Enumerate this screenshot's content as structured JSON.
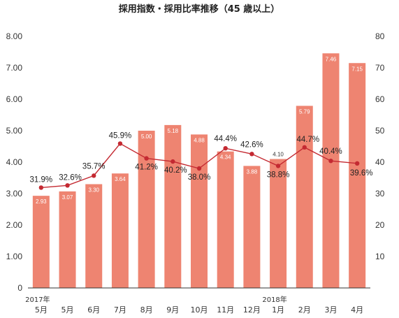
{
  "chart_data": {
    "type": "bar",
    "title": "採用指数・採用比率推移（45 歳以上）",
    "categories": [
      "5月",
      "5月",
      "6月",
      "7月",
      "8月",
      "9月",
      "10月",
      "11月",
      "12月",
      "1月",
      "2月",
      "3月",
      "4月"
    ],
    "year_labels": [
      {
        "index": 0,
        "text": "2017年"
      },
      {
        "index": 9,
        "text": "2018年"
      }
    ],
    "series": [
      {
        "type": "bar",
        "axis": "left",
        "values": [
          2.93,
          3.07,
          3.3,
          3.64,
          5.0,
          5.18,
          4.88,
          4.34,
          3.88,
          4.1,
          5.79,
          7.46,
          7.15
        ],
        "labels": [
          "2.93",
          "3.07",
          "3.30",
          "3.64",
          "5.00",
          "5.18",
          "4.88",
          "4.34",
          "3.88",
          "4.10",
          "5.79",
          "7.46",
          "7.15"
        ]
      },
      {
        "type": "line",
        "axis": "right",
        "values": [
          31.9,
          32.6,
          35.7,
          45.9,
          41.2,
          40.2,
          38.0,
          44.4,
          42.6,
          38.8,
          44.7,
          40.4,
          39.6
        ],
        "labels": [
          "31.9%",
          "32.6%",
          "35.7%",
          "45.9%",
          "41.2%",
          "40.2%",
          "38.0%",
          "44.4%",
          "42.6%",
          "38.8%",
          "44.7%",
          "40.4%",
          "39.6%"
        ]
      }
    ],
    "y_left": {
      "min": 0,
      "max": 8,
      "ticks": [
        "0",
        "1.00",
        "2.00",
        "3.00",
        "4.00",
        "5.00",
        "6.00",
        "7.00",
        "8.00"
      ]
    },
    "y_right": {
      "min": 0,
      "max": 80,
      "ticks": [
        "10",
        "20",
        "30",
        "40",
        "50",
        "60",
        "70",
        "80"
      ]
    },
    "grid": false,
    "legend": "none",
    "colors": {
      "bar": "#ee8471",
      "line": "#c42a32",
      "axis": "#333333"
    }
  }
}
